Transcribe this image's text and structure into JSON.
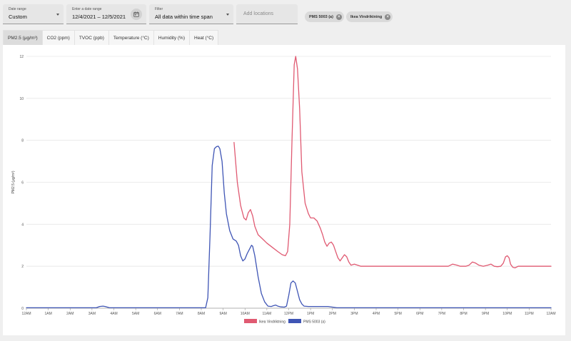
{
  "filters": {
    "date_range": {
      "label": "Date range",
      "value": "Custom"
    },
    "date_input": {
      "label": "Enter a date range",
      "value": "12/4/2021 – 12/5/2021"
    },
    "filter": {
      "label": "Filter",
      "value": "All data within time span"
    },
    "locations": {
      "placeholder": "Add locations"
    }
  },
  "chips": [
    {
      "label": "PMS 5003 (a)",
      "icon": "close-icon"
    },
    {
      "label": "Ikea Vindriktning",
      "icon": "close-icon"
    }
  ],
  "tabs": [
    {
      "label": "PM2.5 (μg/m³)",
      "active": true
    },
    {
      "label": "CO2 (ppm)"
    },
    {
      "label": "TVOC (ppb)"
    },
    {
      "label": "Temperature (°C)"
    },
    {
      "label": "Humidity (%)"
    },
    {
      "label": "Heat (°C)"
    }
  ],
  "chart_data": {
    "type": "line",
    "ylabel": "PM2.5 (μg/m³)",
    "xlabel": "",
    "ylim": [
      0,
      12
    ],
    "yticks": [
      0,
      2,
      4,
      6,
      8,
      10,
      12
    ],
    "xlim": [
      0,
      24
    ],
    "xtick_labels": [
      "12AM",
      "1AM",
      "2AM",
      "3AM",
      "4AM",
      "5AM",
      "6AM",
      "7AM",
      "8AM",
      "9AM",
      "10AM",
      "11AM",
      "12PM",
      "1PM",
      "2PM",
      "3PM",
      "4PM",
      "5PM",
      "6PM",
      "7PM",
      "8PM",
      "9PM",
      "10PM",
      "11PM",
      "12AM"
    ],
    "grid": true,
    "legend_position": "bottom-center",
    "series": [
      {
        "name": "Ikea Vindriktning",
        "color": "#e05a72",
        "points": [
          [
            9.5,
            7.9
          ],
          [
            9.65,
            6.0
          ],
          [
            9.8,
            4.9
          ],
          [
            9.95,
            4.3
          ],
          [
            10.05,
            4.2
          ],
          [
            10.15,
            4.55
          ],
          [
            10.25,
            4.7
          ],
          [
            10.35,
            4.4
          ],
          [
            10.45,
            3.9
          ],
          [
            10.6,
            3.5
          ],
          [
            10.8,
            3.3
          ],
          [
            11.0,
            3.1
          ],
          [
            11.25,
            2.9
          ],
          [
            11.5,
            2.7
          ],
          [
            11.7,
            2.55
          ],
          [
            11.85,
            2.5
          ],
          [
            11.95,
            2.7
          ],
          [
            12.05,
            4.0
          ],
          [
            12.15,
            8.0
          ],
          [
            12.25,
            11.6
          ],
          [
            12.32,
            12.0
          ],
          [
            12.4,
            11.4
          ],
          [
            12.5,
            9.5
          ],
          [
            12.6,
            6.5
          ],
          [
            12.75,
            5.0
          ],
          [
            12.9,
            4.5
          ],
          [
            13.0,
            4.3
          ],
          [
            13.15,
            4.3
          ],
          [
            13.3,
            4.15
          ],
          [
            13.45,
            3.8
          ],
          [
            13.55,
            3.5
          ],
          [
            13.65,
            3.15
          ],
          [
            13.75,
            2.95
          ],
          [
            13.85,
            3.1
          ],
          [
            13.95,
            3.15
          ],
          [
            14.05,
            3.0
          ],
          [
            14.15,
            2.7
          ],
          [
            14.25,
            2.4
          ],
          [
            14.35,
            2.25
          ],
          [
            14.45,
            2.4
          ],
          [
            14.55,
            2.55
          ],
          [
            14.65,
            2.45
          ],
          [
            14.75,
            2.2
          ],
          [
            14.85,
            2.05
          ],
          [
            15.0,
            2.1
          ],
          [
            15.15,
            2.05
          ],
          [
            15.3,
            2.0
          ],
          [
            16.0,
            2.0
          ],
          [
            17.0,
            2.0
          ],
          [
            18.0,
            2.0
          ],
          [
            19.0,
            2.0
          ],
          [
            19.3,
            2.0
          ],
          [
            19.5,
            2.1
          ],
          [
            19.7,
            2.05
          ],
          [
            19.85,
            2.0
          ],
          [
            20.1,
            2.0
          ],
          [
            20.25,
            2.05
          ],
          [
            20.4,
            2.2
          ],
          [
            20.55,
            2.15
          ],
          [
            20.7,
            2.05
          ],
          [
            20.9,
            2.0
          ],
          [
            21.1,
            2.05
          ],
          [
            21.25,
            2.1
          ],
          [
            21.4,
            2.0
          ],
          [
            21.55,
            1.98
          ],
          [
            21.7,
            2.0
          ],
          [
            21.82,
            2.15
          ],
          [
            21.92,
            2.45
          ],
          [
            22.0,
            2.5
          ],
          [
            22.08,
            2.4
          ],
          [
            22.15,
            2.1
          ],
          [
            22.25,
            1.95
          ],
          [
            22.35,
            1.92
          ],
          [
            22.5,
            2.0
          ],
          [
            23.0,
            2.0
          ],
          [
            24.0,
            2.0
          ]
        ]
      },
      {
        "name": "PMS 5003 (a)",
        "color": "#3f55b5",
        "points": [
          [
            0,
            0.02
          ],
          [
            2,
            0.02
          ],
          [
            3.2,
            0.02
          ],
          [
            3.35,
            0.08
          ],
          [
            3.5,
            0.1
          ],
          [
            3.6,
            0.08
          ],
          [
            3.8,
            0.02
          ],
          [
            6,
            0.02
          ],
          [
            7.5,
            0.02
          ],
          [
            8.2,
            0.02
          ],
          [
            8.3,
            0.5
          ],
          [
            8.4,
            3.5
          ],
          [
            8.5,
            6.8
          ],
          [
            8.6,
            7.6
          ],
          [
            8.7,
            7.7
          ],
          [
            8.78,
            7.72
          ],
          [
            8.85,
            7.6
          ],
          [
            8.95,
            7.0
          ],
          [
            9.05,
            5.5
          ],
          [
            9.15,
            4.5
          ],
          [
            9.3,
            3.7
          ],
          [
            9.45,
            3.3
          ],
          [
            9.6,
            3.2
          ],
          [
            9.7,
            3.0
          ],
          [
            9.8,
            2.5
          ],
          [
            9.9,
            2.25
          ],
          [
            10.0,
            2.35
          ],
          [
            10.1,
            2.6
          ],
          [
            10.2,
            2.8
          ],
          [
            10.3,
            3.0
          ],
          [
            10.35,
            2.95
          ],
          [
            10.45,
            2.5
          ],
          [
            10.6,
            1.5
          ],
          [
            10.75,
            0.7
          ],
          [
            10.9,
            0.3
          ],
          [
            11.05,
            0.1
          ],
          [
            11.2,
            0.08
          ],
          [
            11.3,
            0.12
          ],
          [
            11.4,
            0.15
          ],
          [
            11.5,
            0.1
          ],
          [
            11.65,
            0.06
          ],
          [
            11.8,
            0.05
          ],
          [
            11.9,
            0.1
          ],
          [
            12.0,
            0.6
          ],
          [
            12.1,
            1.2
          ],
          [
            12.2,
            1.3
          ],
          [
            12.3,
            1.2
          ],
          [
            12.4,
            0.8
          ],
          [
            12.5,
            0.4
          ],
          [
            12.6,
            0.2
          ],
          [
            12.7,
            0.1
          ],
          [
            12.9,
            0.08
          ],
          [
            13.2,
            0.08
          ],
          [
            13.5,
            0.08
          ],
          [
            13.8,
            0.08
          ],
          [
            14.0,
            0.05
          ],
          [
            14.2,
            0.02
          ],
          [
            16,
            0.02
          ],
          [
            20,
            0.02
          ],
          [
            24,
            0.02
          ]
        ]
      }
    ]
  }
}
